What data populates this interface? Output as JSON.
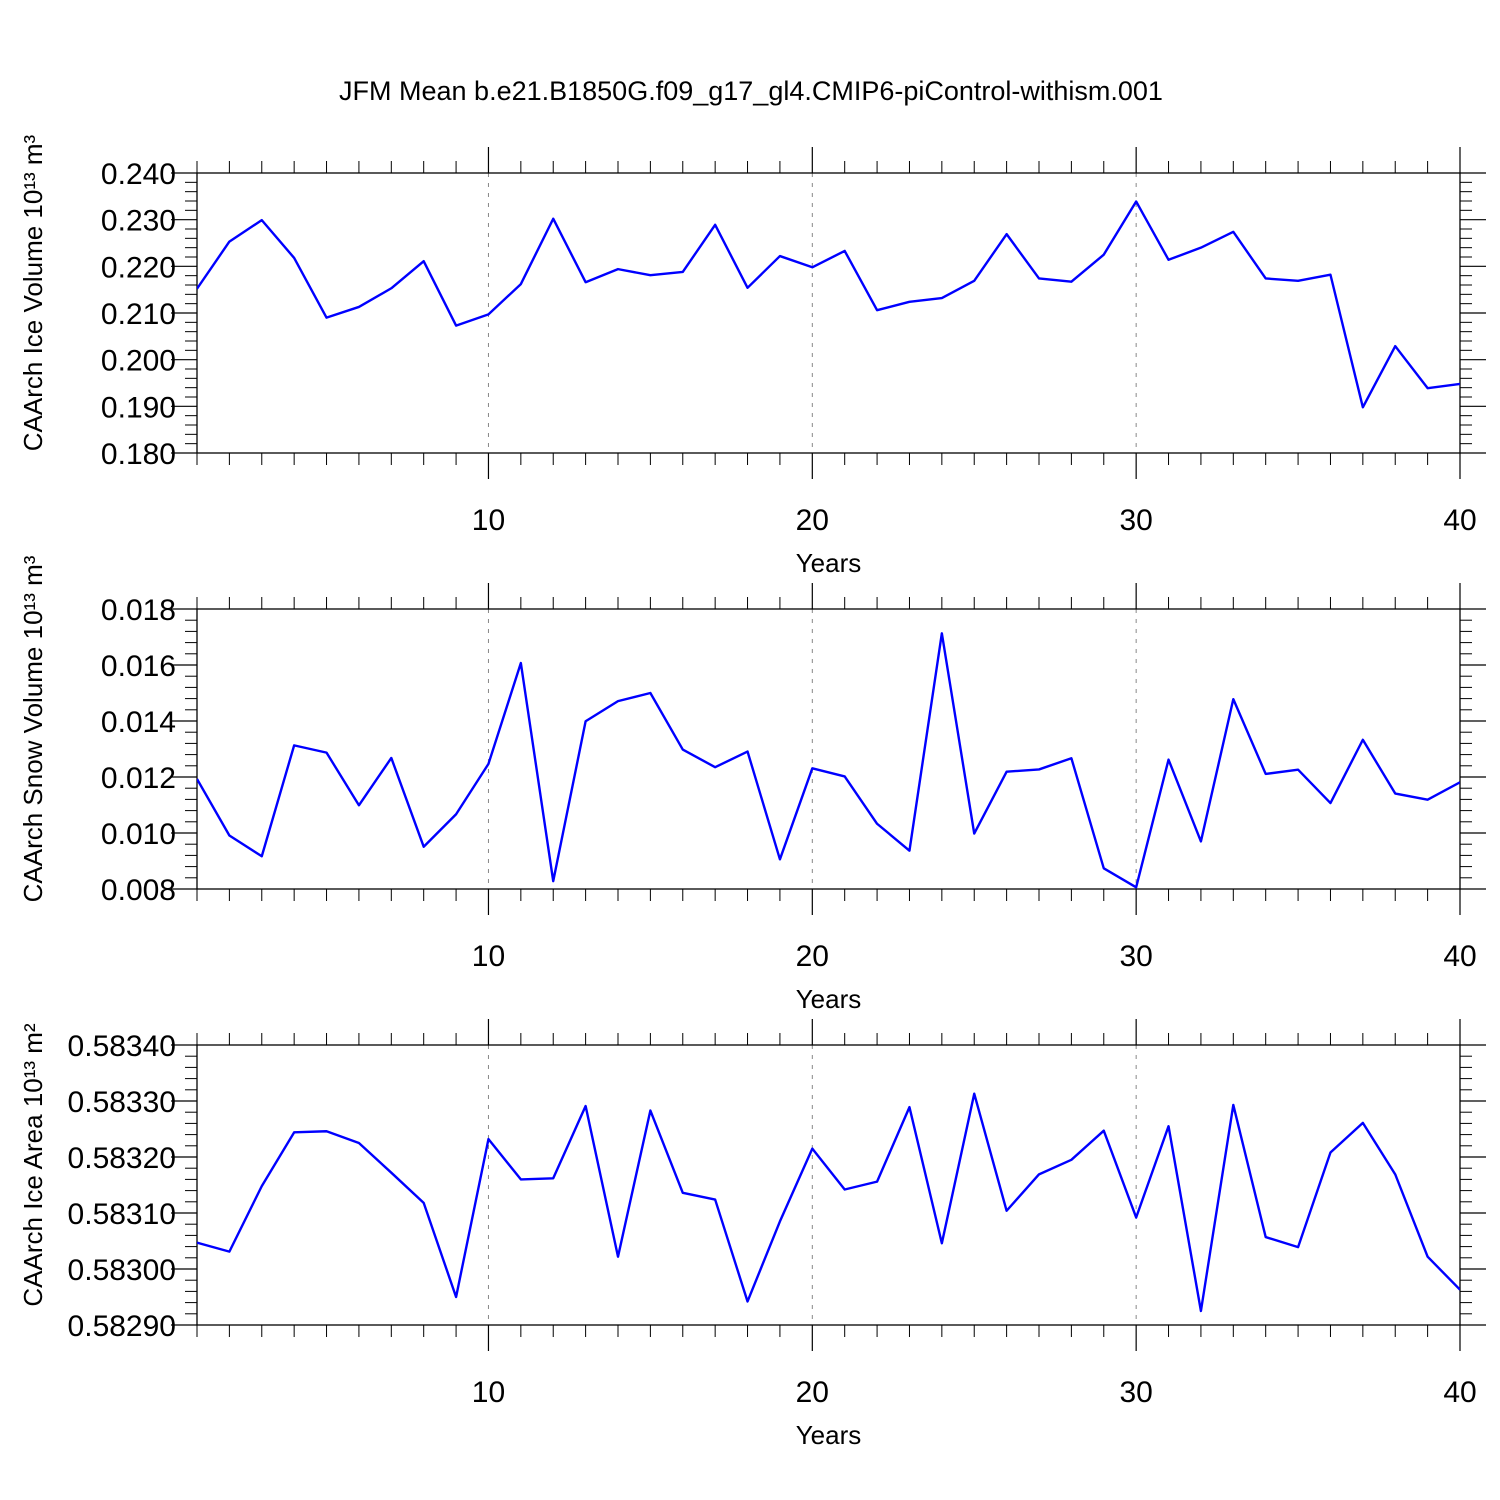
{
  "title": "JFM Mean b.e21.B1850G.f09_g17_gl4.CMIP6-piControl-withism.001",
  "colors": {
    "line": "#0000ff",
    "axis": "#000000",
    "grid": "#888888"
  },
  "chart_data": [
    {
      "type": "line",
      "ylabel": "CAArch Ice Volume",
      "ylabel_unit": "10¹³ m³",
      "xlabel": "Years",
      "xlim": [
        1,
        40
      ],
      "ylim": [
        0.18,
        0.24
      ],
      "yticks": [
        0.18,
        0.19,
        0.2,
        0.21,
        0.22,
        0.23,
        0.24
      ],
      "ytick_labels": [
        "0.180",
        "0.190",
        "0.200",
        "0.210",
        "0.220",
        "0.230",
        "0.240"
      ],
      "xticks": [
        10,
        20,
        30,
        40
      ],
      "xtick_labels": [
        "10",
        "20",
        "30",
        "40"
      ],
      "grid": "dashed vertical lines at 10, 20, 30",
      "x": [
        1,
        2,
        3,
        4,
        5,
        6,
        7,
        8,
        9,
        10,
        11,
        12,
        13,
        14,
        15,
        16,
        17,
        18,
        19,
        20,
        21,
        22,
        23,
        24,
        25,
        26,
        27,
        28,
        29,
        30,
        31,
        32,
        33,
        34,
        35,
        36,
        37,
        38,
        39,
        40
      ],
      "values": [
        0.2152,
        0.2253,
        0.2299,
        0.2218,
        0.209,
        0.2113,
        0.2153,
        0.2211,
        0.2073,
        0.2097,
        0.2162,
        0.2302,
        0.2166,
        0.2194,
        0.2181,
        0.2188,
        0.2289,
        0.2154,
        0.2222,
        0.2198,
        0.2233,
        0.2106,
        0.2124,
        0.2132,
        0.2169,
        0.2269,
        0.2174,
        0.2167,
        0.2225,
        0.2339,
        0.2214,
        0.224,
        0.2274,
        0.2174,
        0.2169,
        0.2182,
        0.1898,
        0.2029,
        0.1939,
        0.1948
      ]
    },
    {
      "type": "line",
      "ylabel": "CAArch Snow Volume",
      "ylabel_unit": "10¹³ m³",
      "xlabel": "Years",
      "xlim": [
        1,
        40
      ],
      "ylim": [
        0.008,
        0.018
      ],
      "yticks": [
        0.008,
        0.01,
        0.012,
        0.014,
        0.016,
        0.018
      ],
      "ytick_labels": [
        "0.008",
        "0.010",
        "0.012",
        "0.014",
        "0.016",
        "0.018"
      ],
      "xticks": [
        10,
        20,
        30,
        40
      ],
      "xtick_labels": [
        "10",
        "20",
        "30",
        "40"
      ],
      "grid": "dashed vertical lines at 10, 20, 30",
      "x": [
        1,
        2,
        3,
        4,
        5,
        6,
        7,
        8,
        9,
        10,
        11,
        12,
        13,
        14,
        15,
        16,
        17,
        18,
        19,
        20,
        21,
        22,
        23,
        24,
        25,
        26,
        27,
        28,
        29,
        30,
        31,
        32,
        33,
        34,
        35,
        36,
        37,
        38,
        39,
        40
      ],
      "values": [
        0.01193,
        0.00991,
        0.00917,
        0.01313,
        0.01287,
        0.01099,
        0.01268,
        0.00951,
        0.01067,
        0.01247,
        0.01607,
        0.00828,
        0.01399,
        0.01471,
        0.015,
        0.01298,
        0.01235,
        0.01291,
        0.00906,
        0.01231,
        0.01202,
        0.01033,
        0.00937,
        0.01713,
        0.00998,
        0.01219,
        0.01227,
        0.01267,
        0.00874,
        0.00806,
        0.01262,
        0.0097,
        0.01478,
        0.01211,
        0.01226,
        0.01107,
        0.01333,
        0.01141,
        0.01119,
        0.01181
      ]
    },
    {
      "type": "line",
      "ylabel": "CAArch Ice Area",
      "ylabel_unit": "10¹³ m²",
      "xlabel": "Years",
      "xlim": [
        1,
        40
      ],
      "ylim": [
        0.5829,
        0.5834
      ],
      "yticks": [
        0.5829,
        0.583,
        0.5831,
        0.5832,
        0.5833,
        0.5834
      ],
      "ytick_labels": [
        "0.58290",
        "0.58300",
        "0.58310",
        "0.58320",
        "0.58330",
        "0.58340"
      ],
      "xticks": [
        10,
        20,
        30,
        40
      ],
      "xtick_labels": [
        "10",
        "20",
        "30",
        "40"
      ],
      "grid": "dashed vertical lines at 10, 20, 30",
      "x": [
        1,
        2,
        3,
        4,
        5,
        6,
        7,
        8,
        9,
        10,
        11,
        12,
        13,
        14,
        15,
        16,
        17,
        18,
        19,
        20,
        21,
        22,
        23,
        24,
        25,
        26,
        27,
        28,
        29,
        30,
        31,
        32,
        33,
        34,
        35,
        36,
        37,
        38,
        39,
        40
      ],
      "values": [
        0.583047,
        0.583031,
        0.583148,
        0.583244,
        0.583246,
        0.583225,
        0.583172,
        0.583118,
        0.58295,
        0.583232,
        0.58316,
        0.583162,
        0.583291,
        0.583022,
        0.583283,
        0.583136,
        0.583124,
        0.582942,
        0.583085,
        0.583215,
        0.583142,
        0.583156,
        0.583289,
        0.583046,
        0.583313,
        0.583104,
        0.583169,
        0.583195,
        0.583247,
        0.583092,
        0.583255,
        0.582925,
        0.583293,
        0.583057,
        0.583039,
        0.583208,
        0.583261,
        0.583169,
        0.583022,
        0.582963
      ]
    }
  ]
}
